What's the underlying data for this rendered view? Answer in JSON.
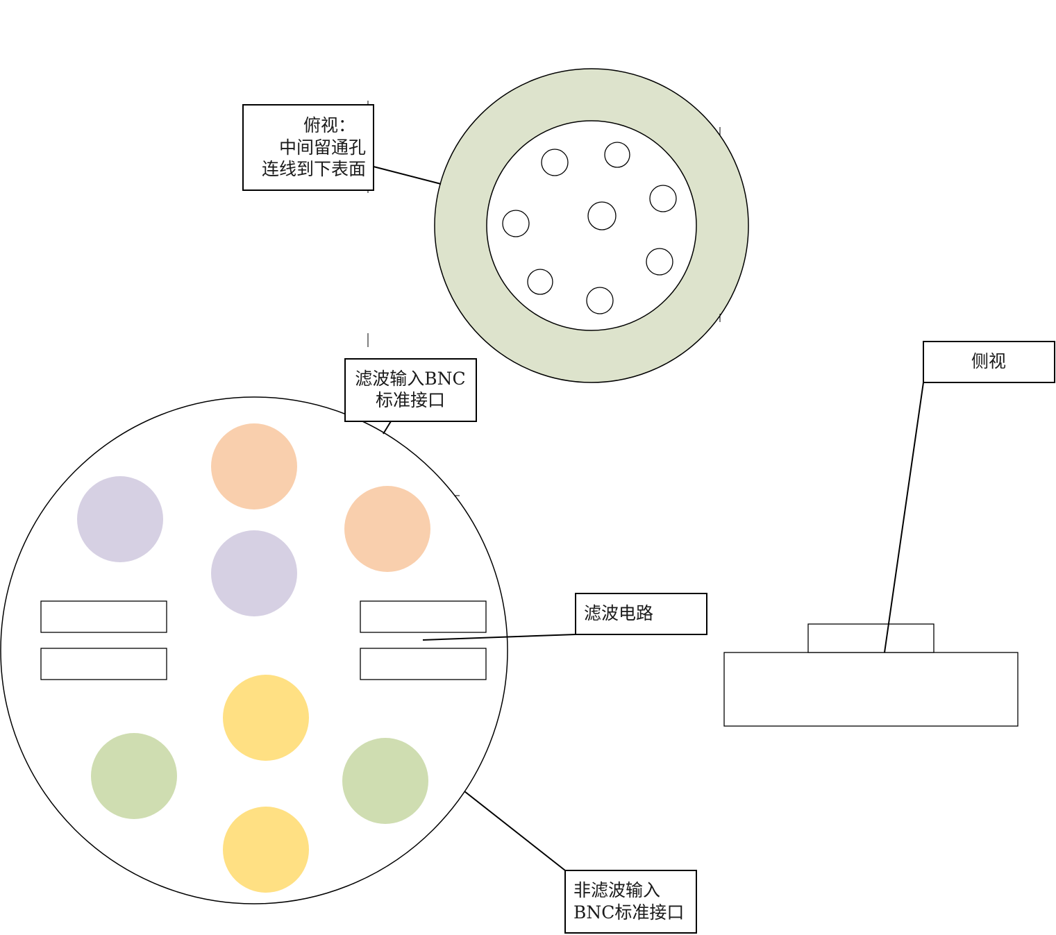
{
  "top_view_callout": {
    "line1": "俯视：",
    "line2": "中间留通孔",
    "line3": "连线到下表面"
  },
  "filter_bnc_callout": {
    "line1": "滤波输入BNC",
    "line2": "标准接口"
  },
  "filter_circuit_callout": {
    "label": "滤波电路"
  },
  "nonfilter_bnc_callout": {
    "line1": "非滤波输入",
    "line2": "BNC标准接口"
  },
  "side_view_callout": {
    "label": "侧视"
  },
  "colors": {
    "ring_fill": "#dde3cc",
    "connector_orange": "#f9cfad",
    "connector_purple": "#d6d0e3",
    "connector_yellow": "#ffe083",
    "connector_green": "#cfddb1",
    "stroke": "#000000"
  }
}
